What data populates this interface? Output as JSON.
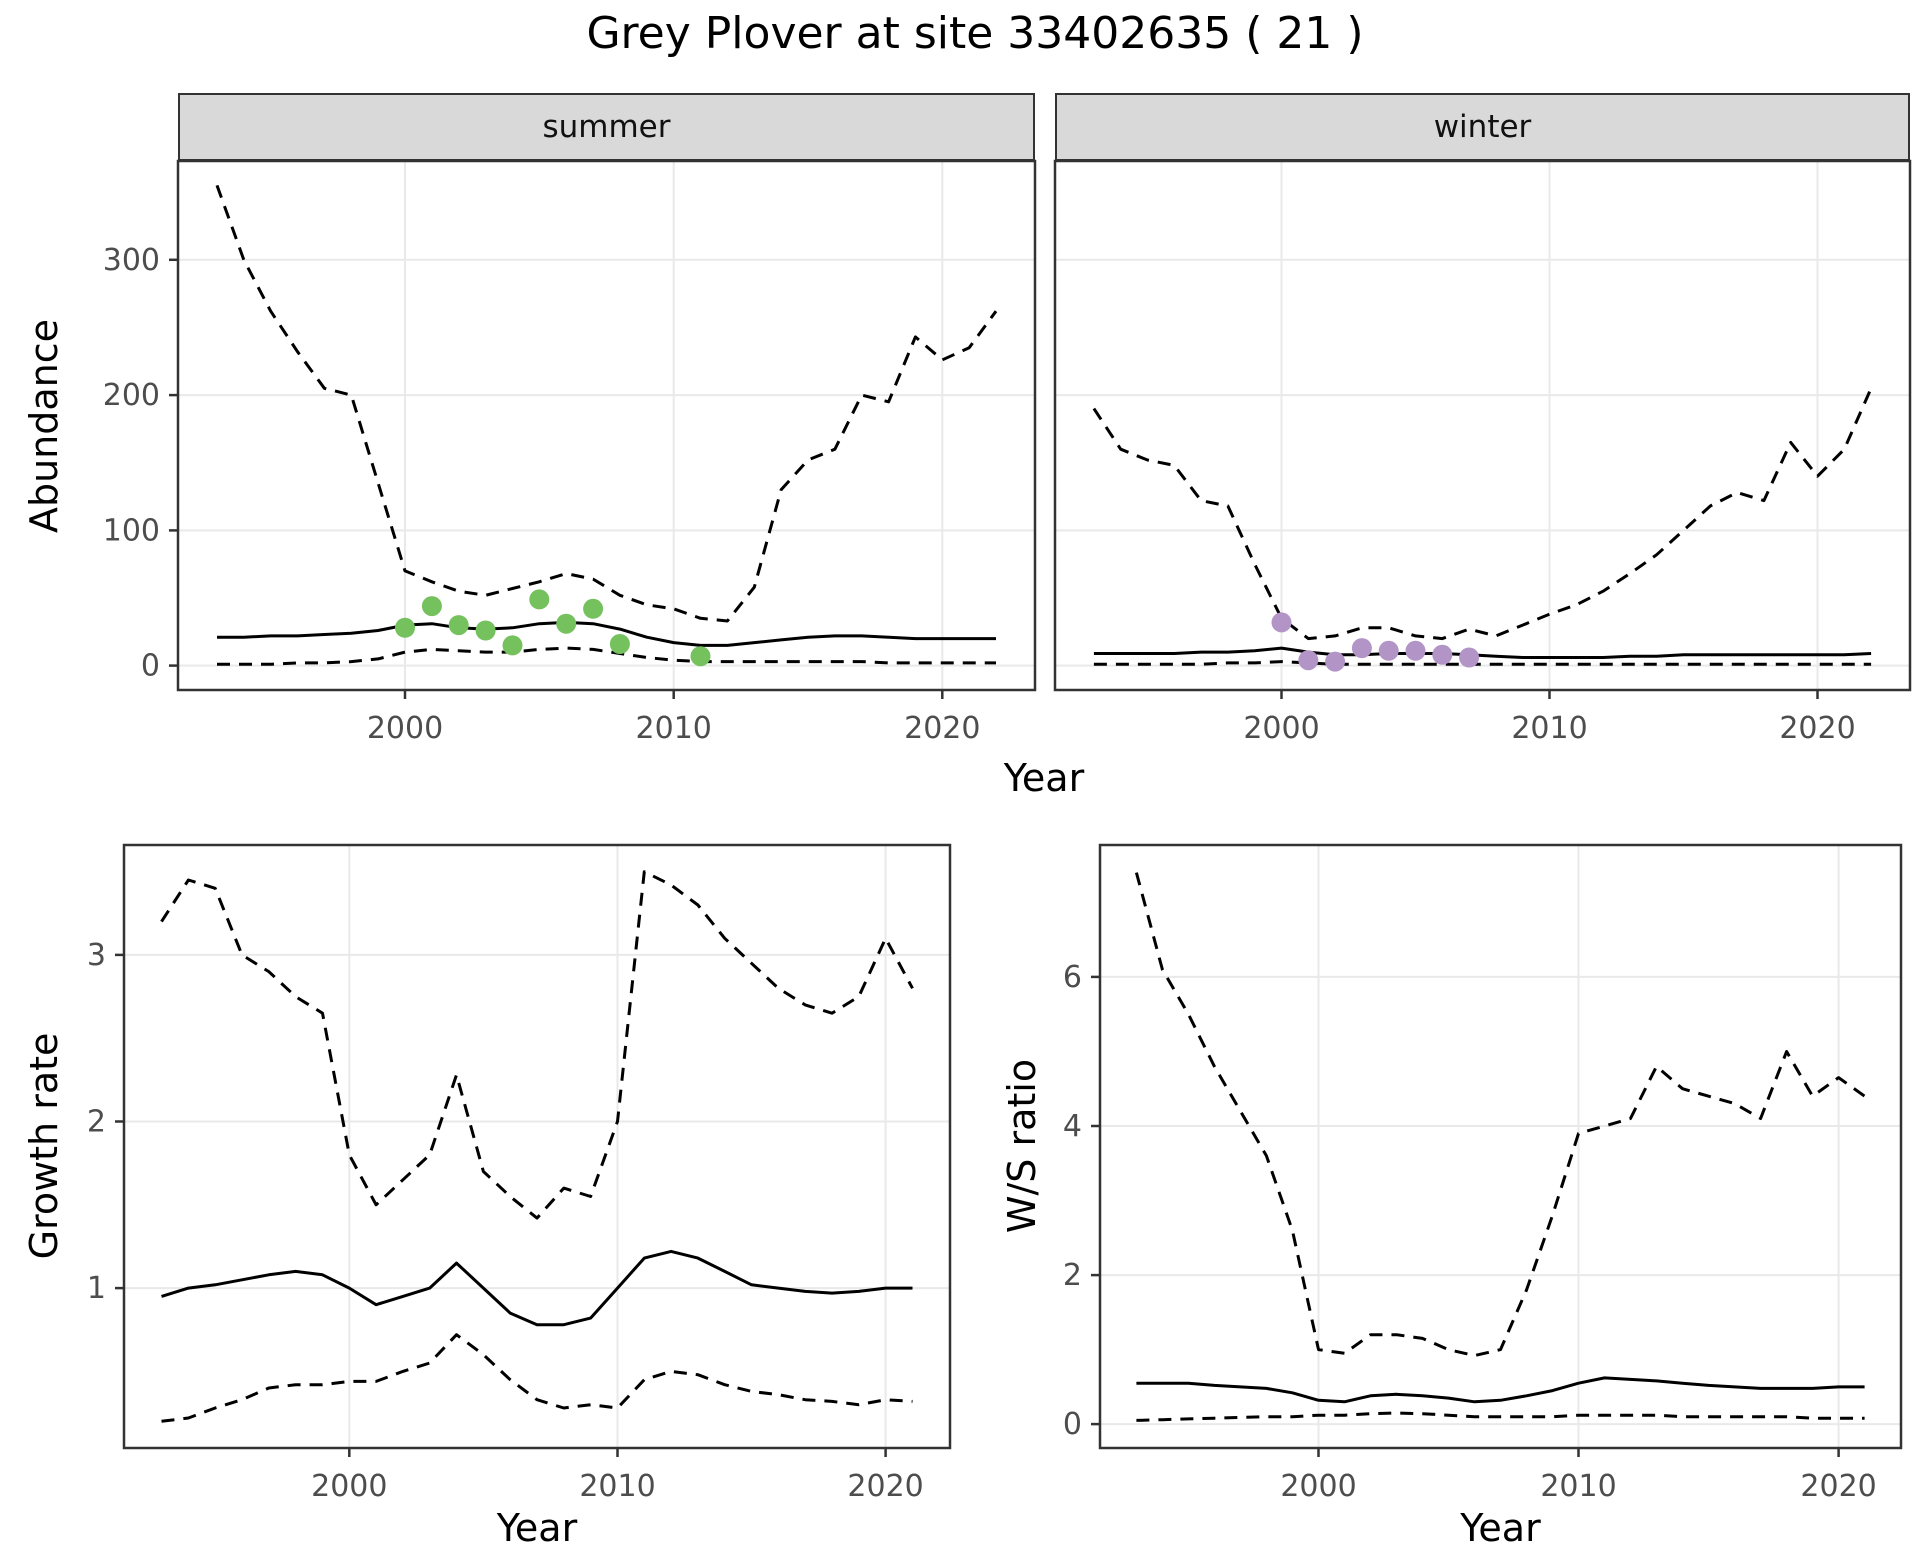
{
  "title": "Grey Plover at site 33402635 ( 21 )",
  "facets": {
    "summer": "summer",
    "winter": "winter"
  },
  "axis_labels": {
    "year": "Year",
    "abundance": "Abundance",
    "growth_rate": "Growth rate",
    "ws_ratio": "W/S ratio"
  },
  "colors": {
    "summer_points": "#74c15e",
    "winter_points": "#b294c7",
    "line": "#000000",
    "grid": "#e9e9e9",
    "strip_bg": "#d9d9d9",
    "panel_border": "#333333",
    "tick": "#333333",
    "tick_text": "#4d4d4d"
  },
  "chart_data": [
    {
      "id": "abundance-summer",
      "type": "line",
      "facet": "summer",
      "xlabel": "Year",
      "ylabel": "Abundance",
      "xlim": [
        1991.55,
        2023.45
      ],
      "ylim": [
        -18,
        373
      ],
      "xticks": [
        2000,
        2010,
        2020
      ],
      "yticks": [
        0,
        100,
        200,
        300
      ],
      "grid": true,
      "x": [
        1993,
        1994,
        1995,
        1996,
        1997,
        1998,
        1999,
        2000,
        2001,
        2002,
        2003,
        2004,
        2005,
        2006,
        2007,
        2008,
        2009,
        2010,
        2011,
        2012,
        2013,
        2014,
        2015,
        2016,
        2017,
        2018,
        2019,
        2020,
        2021,
        2022
      ],
      "series": [
        {
          "name": "upper-95ci",
          "style": "dashed",
          "color": "#000000",
          "values": [
            355,
            300,
            262,
            232,
            205,
            200,
            135,
            70,
            62,
            55,
            52,
            57,
            62,
            68,
            64,
            52,
            45,
            42,
            35,
            33,
            58,
            130,
            152,
            160,
            200,
            195,
            243,
            226,
            235,
            262
          ]
        },
        {
          "name": "median",
          "style": "solid",
          "color": "#000000",
          "values": [
            21,
            21,
            22,
            22,
            23,
            24,
            26,
            30,
            31,
            28,
            27,
            28,
            31,
            32,
            31,
            27,
            21,
            17,
            15,
            15,
            17,
            19,
            21,
            22,
            22,
            21,
            20,
            20,
            20,
            20
          ]
        },
        {
          "name": "lower-95ci",
          "style": "dashed",
          "color": "#000000",
          "values": [
            1,
            1,
            1,
            2,
            2,
            3,
            5,
            10,
            12,
            11,
            10,
            10,
            12,
            13,
            12,
            9,
            6,
            4,
            3,
            3,
            3,
            3,
            3,
            3,
            3,
            2,
            2,
            2,
            2,
            2
          ]
        }
      ],
      "points": {
        "name": "observed-counts",
        "color": "#74c15e",
        "x": [
          2000,
          2001,
          2002,
          2003,
          2004,
          2005,
          2006,
          2007,
          2008,
          2011
        ],
        "y": [
          28,
          44,
          30,
          26,
          15,
          49,
          31,
          42,
          16,
          7
        ]
      }
    },
    {
      "id": "abundance-winter",
      "type": "line",
      "facet": "winter",
      "xlabel": "Year",
      "ylabel": "Abundance",
      "xlim": [
        1991.55,
        2023.45
      ],
      "ylim": [
        -18,
        373
      ],
      "xticks": [
        2000,
        2010,
        2020
      ],
      "yticks": [
        0,
        100,
        200,
        300
      ],
      "grid": true,
      "x": [
        1993,
        1994,
        1995,
        1996,
        1997,
        1998,
        1999,
        2000,
        2001,
        2002,
        2003,
        2004,
        2005,
        2006,
        2007,
        2008,
        2009,
        2010,
        2011,
        2012,
        2013,
        2014,
        2015,
        2016,
        2017,
        2018,
        2019,
        2020,
        2021,
        2022
      ],
      "series": [
        {
          "name": "upper-95ci",
          "style": "dashed",
          "color": "#000000",
          "values": [
            190,
            160,
            152,
            148,
            122,
            118,
            75,
            35,
            20,
            22,
            28,
            28,
            22,
            20,
            27,
            22,
            30,
            38,
            45,
            55,
            68,
            82,
            100,
            118,
            128,
            122,
            165,
            140,
            160,
            205
          ]
        },
        {
          "name": "median",
          "style": "solid",
          "color": "#000000",
          "values": [
            9,
            9,
            9,
            9,
            10,
            10,
            11,
            13,
            10,
            8,
            8,
            9,
            9,
            9,
            8,
            7,
            6,
            6,
            6,
            6,
            7,
            7,
            8,
            8,
            8,
            8,
            8,
            8,
            8,
            9
          ]
        },
        {
          "name": "lower-95ci",
          "style": "dashed",
          "color": "#000000",
          "values": [
            1,
            1,
            1,
            1,
            1,
            2,
            2,
            3,
            2,
            1,
            1,
            1,
            1,
            1,
            1,
            1,
            1,
            1,
            1,
            1,
            1,
            1,
            1,
            1,
            1,
            1,
            1,
            1,
            1,
            1
          ]
        }
      ],
      "points": {
        "name": "observed-counts",
        "color": "#b294c7",
        "x": [
          2000,
          2001,
          2002,
          2003,
          2004,
          2005,
          2006,
          2007
        ],
        "y": [
          32,
          4,
          3,
          13,
          11,
          11,
          8,
          6
        ]
      }
    },
    {
      "id": "growth-rate",
      "type": "line",
      "xlabel": "Year",
      "ylabel": "Growth rate",
      "xlim": [
        1991.6,
        2022.4
      ],
      "ylim": [
        0.04,
        3.66
      ],
      "xticks": [
        2000,
        2010,
        2020
      ],
      "yticks": [
        1,
        2,
        3
      ],
      "grid": true,
      "x": [
        1993,
        1994,
        1995,
        1996,
        1997,
        1998,
        1999,
        2000,
        2001,
        2002,
        2003,
        2004,
        2005,
        2006,
        2007,
        2008,
        2009,
        2010,
        2011,
        2012,
        2013,
        2014,
        2015,
        2016,
        2017,
        2018,
        2019,
        2020,
        2021
      ],
      "series": [
        {
          "name": "upper-95ci",
          "style": "dashed",
          "color": "#000000",
          "values": [
            3.2,
            3.45,
            3.4,
            3.0,
            2.9,
            2.75,
            2.65,
            1.8,
            1.5,
            1.65,
            1.8,
            2.28,
            1.7,
            1.55,
            1.42,
            1.6,
            1.55,
            2.0,
            3.5,
            3.42,
            3.3,
            3.1,
            2.95,
            2.8,
            2.7,
            2.65,
            2.75,
            3.1,
            2.8
          ]
        },
        {
          "name": "median",
          "style": "solid",
          "color": "#000000",
          "values": [
            0.95,
            1.0,
            1.02,
            1.05,
            1.08,
            1.1,
            1.08,
            1.0,
            0.9,
            0.95,
            1.0,
            1.15,
            1.0,
            0.85,
            0.78,
            0.78,
            0.82,
            1.0,
            1.18,
            1.22,
            1.18,
            1.1,
            1.02,
            1.0,
            0.98,
            0.97,
            0.98,
            1.0,
            1.0
          ]
        },
        {
          "name": "lower-95ci",
          "style": "dashed",
          "color": "#000000",
          "values": [
            0.2,
            0.22,
            0.28,
            0.33,
            0.4,
            0.42,
            0.42,
            0.44,
            0.44,
            0.5,
            0.55,
            0.72,
            0.6,
            0.45,
            0.33,
            0.28,
            0.3,
            0.28,
            0.45,
            0.5,
            0.48,
            0.42,
            0.38,
            0.36,
            0.33,
            0.32,
            0.3,
            0.33,
            0.32
          ]
        }
      ]
    },
    {
      "id": "ws-ratio",
      "type": "line",
      "xlabel": "Year",
      "ylabel": "W/S ratio",
      "xlim": [
        1991.6,
        2022.4
      ],
      "ylim": [
        -0.32,
        7.77
      ],
      "xticks": [
        2000,
        2010,
        2020
      ],
      "yticks": [
        0,
        2,
        4,
        6
      ],
      "grid": true,
      "x": [
        1993,
        1994,
        1995,
        1996,
        1997,
        1998,
        1999,
        2000,
        2001,
        2002,
        2003,
        2004,
        2005,
        2006,
        2007,
        2008,
        2009,
        2010,
        2011,
        2012,
        2013,
        2014,
        2015,
        2016,
        2017,
        2018,
        2019,
        2020,
        2021
      ],
      "series": [
        {
          "name": "upper-95ci",
          "style": "dashed",
          "color": "#000000",
          "values": [
            7.4,
            6.1,
            5.5,
            4.8,
            4.2,
            3.6,
            2.6,
            1.0,
            0.95,
            1.2,
            1.2,
            1.15,
            1.0,
            0.92,
            1.0,
            1.8,
            2.8,
            3.9,
            4.0,
            4.1,
            4.8,
            4.5,
            4.4,
            4.3,
            4.1,
            5.0,
            4.4,
            4.65,
            4.4
          ]
        },
        {
          "name": "median",
          "style": "solid",
          "color": "#000000",
          "values": [
            0.55,
            0.55,
            0.55,
            0.52,
            0.5,
            0.48,
            0.42,
            0.32,
            0.3,
            0.38,
            0.4,
            0.38,
            0.35,
            0.3,
            0.32,
            0.38,
            0.45,
            0.55,
            0.62,
            0.6,
            0.58,
            0.55,
            0.52,
            0.5,
            0.48,
            0.48,
            0.48,
            0.5,
            0.5
          ]
        },
        {
          "name": "lower-95ci",
          "style": "dashed",
          "color": "#000000",
          "values": [
            0.05,
            0.06,
            0.07,
            0.08,
            0.09,
            0.1,
            0.1,
            0.12,
            0.12,
            0.14,
            0.15,
            0.14,
            0.12,
            0.1,
            0.1,
            0.1,
            0.1,
            0.12,
            0.12,
            0.12,
            0.12,
            0.1,
            0.1,
            0.1,
            0.1,
            0.1,
            0.08,
            0.08,
            0.08
          ]
        }
      ]
    }
  ]
}
